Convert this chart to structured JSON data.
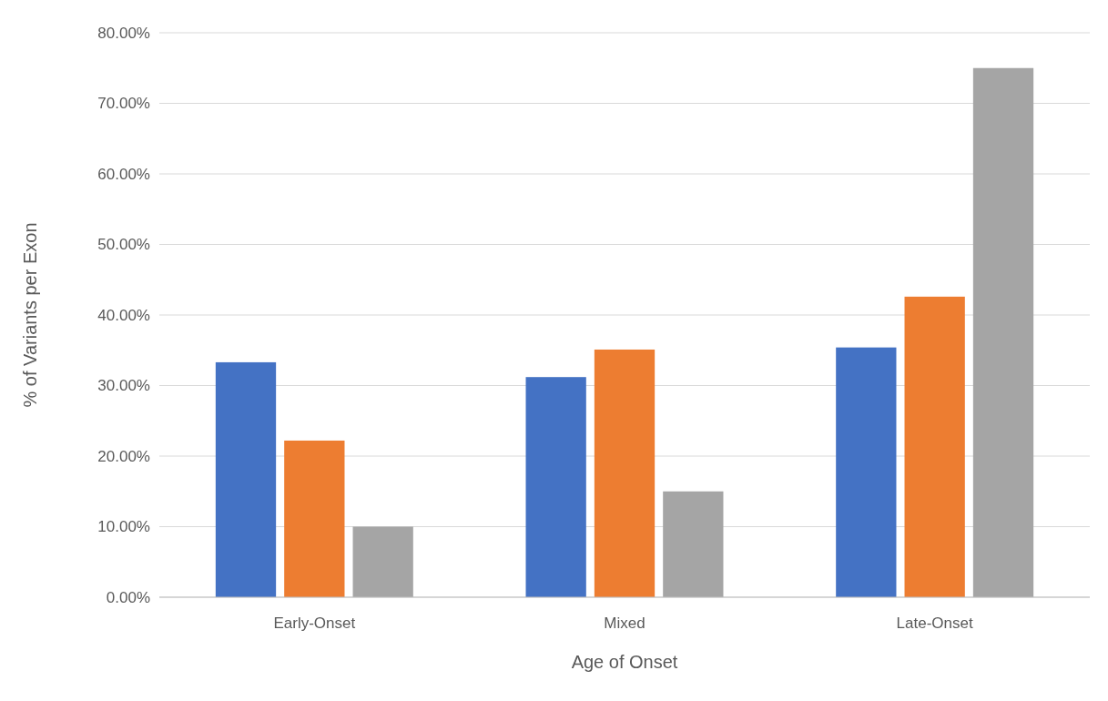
{
  "chart_data": {
    "type": "bar",
    "xlabel": "Age of Onset",
    "ylabel": "% of Variants per Exon",
    "categories": [
      "Early-Onset",
      "Mixed",
      "Late-Onset"
    ],
    "series": [
      {
        "color": "#4472c4",
        "values": [
          33.3,
          31.2,
          35.4
        ]
      },
      {
        "color": "#ed7d31",
        "values": [
          22.2,
          35.1,
          42.6
        ]
      },
      {
        "color": "#a5a5a5",
        "values": [
          10,
          15,
          75
        ]
      }
    ],
    "ylim": [
      0,
      80
    ],
    "yticks": [
      {
        "value": 0,
        "label": "0.00%"
      },
      {
        "value": 10,
        "label": "10.00%"
      },
      {
        "value": 20,
        "label": "20.00%"
      },
      {
        "value": 30,
        "label": "30.00%"
      },
      {
        "value": 40,
        "label": "40.00%"
      },
      {
        "value": 50,
        "label": "50.00%"
      },
      {
        "value": 60,
        "label": "60.00%"
      },
      {
        "value": 70,
        "label": "70.00%"
      },
      {
        "value": 80,
        "label": "80.00%"
      }
    ],
    "grid": "y"
  }
}
